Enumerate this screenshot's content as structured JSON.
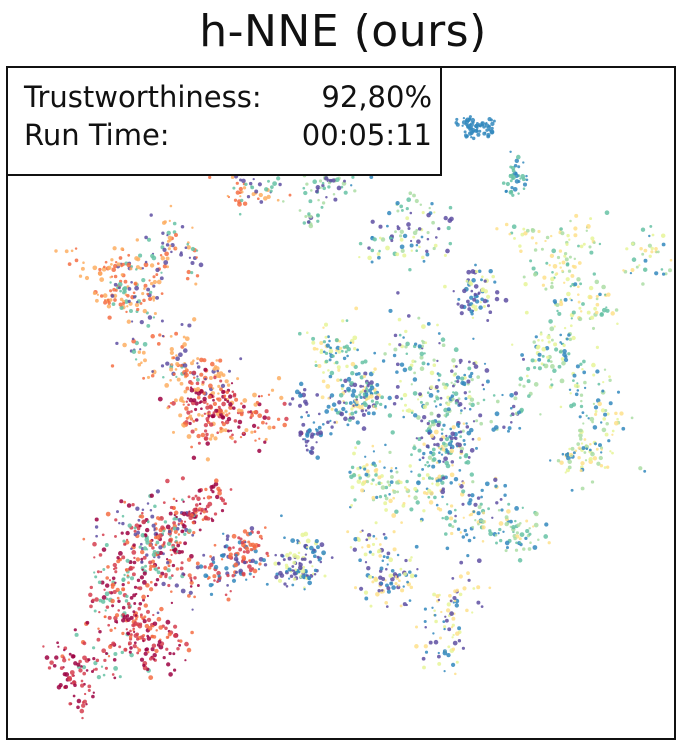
{
  "chart_data": {
    "type": "scatter",
    "title": "h-NNE (ours)",
    "xlabel": "",
    "ylabel": "",
    "grid": false,
    "legend": "none",
    "stats": [
      {
        "label": "Trustworthiness:",
        "value": "92,80%"
      },
      {
        "label": "Run Time:",
        "value": "00:05:11"
      }
    ],
    "colormap": [
      "#9e0142",
      "#d53e4f",
      "#f46d43",
      "#fdae61",
      "#fee08b",
      "#e6f598",
      "#abdda4",
      "#66c2a5",
      "#3288bd",
      "#5e4fa2"
    ],
    "xlim": [
      0,
      100
    ],
    "ylim": [
      0,
      100
    ],
    "clusters": [
      {
        "x": 71,
        "y": 91,
        "spread": 1.6,
        "n": 70,
        "palette": [
          8
        ]
      },
      {
        "x": 75,
        "y": 84,
        "spread": 1.8,
        "n": 40,
        "palette": [
          8,
          7
        ]
      },
      {
        "x": 48,
        "y": 80,
        "spread": 2.2,
        "n": 60,
        "palette": [
          6,
          7,
          9
        ]
      },
      {
        "x": 35,
        "y": 80,
        "spread": 2.4,
        "n": 70,
        "palette": [
          2,
          3,
          9,
          7
        ]
      },
      {
        "x": 24,
        "y": 76,
        "spread": 2.8,
        "n": 90,
        "palette": [
          3,
          2,
          9,
          7
        ]
      },
      {
        "x": 14,
        "y": 70,
        "spread": 2.2,
        "n": 60,
        "palette": [
          3,
          2
        ]
      },
      {
        "x": 21,
        "y": 63,
        "spread": 3.0,
        "n": 110,
        "palette": [
          3,
          2,
          9,
          7
        ]
      },
      {
        "x": 28,
        "y": 57,
        "spread": 2.6,
        "n": 80,
        "palette": [
          3,
          2,
          9
        ]
      },
      {
        "x": 58,
        "y": 77,
        "spread": 4.0,
        "n": 110,
        "palette": [
          7,
          6,
          8,
          9,
          5
        ]
      },
      {
        "x": 71,
        "y": 68,
        "spread": 2.8,
        "n": 70,
        "palette": [
          9,
          8,
          5
        ]
      },
      {
        "x": 82,
        "y": 70,
        "spread": 3.5,
        "n": 100,
        "palette": [
          6,
          5,
          7,
          4
        ]
      },
      {
        "x": 90,
        "y": 66,
        "spread": 3.5,
        "n": 90,
        "palette": [
          5,
          6,
          7,
          4,
          8
        ]
      },
      {
        "x": 33,
        "y": 49,
        "spread": 4.0,
        "n": 220,
        "palette": [
          0,
          1,
          2,
          3
        ]
      },
      {
        "x": 44,
        "y": 48,
        "spread": 2.0,
        "n": 50,
        "palette": [
          9,
          8
        ]
      },
      {
        "x": 53,
        "y": 50,
        "spread": 3.0,
        "n": 130,
        "palette": [
          9,
          8,
          7,
          4
        ]
      },
      {
        "x": 62,
        "y": 55,
        "spread": 4.5,
        "n": 150,
        "palette": [
          9,
          8,
          7,
          5,
          6
        ]
      },
      {
        "x": 48,
        "y": 58,
        "spread": 3.5,
        "n": 80,
        "palette": [
          4,
          5,
          7,
          8
        ]
      },
      {
        "x": 70,
        "y": 48,
        "spread": 3.5,
        "n": 110,
        "palette": [
          7,
          6,
          8,
          9
        ]
      },
      {
        "x": 80,
        "y": 55,
        "spread": 3.8,
        "n": 110,
        "palette": [
          6,
          5,
          7,
          8
        ]
      },
      {
        "x": 87,
        "y": 44,
        "spread": 3.6,
        "n": 100,
        "palette": [
          6,
          5,
          4,
          8
        ]
      },
      {
        "x": 67,
        "y": 39,
        "spread": 3.5,
        "n": 140,
        "palette": [
          9,
          8,
          7,
          4
        ]
      },
      {
        "x": 59,
        "y": 33,
        "spread": 3.6,
        "n": 110,
        "palette": [
          6,
          5,
          7,
          8,
          4
        ]
      },
      {
        "x": 73,
        "y": 29,
        "spread": 3.5,
        "n": 100,
        "palette": [
          6,
          7,
          8,
          4
        ]
      },
      {
        "x": 57,
        "y": 25,
        "spread": 3.5,
        "n": 110,
        "palette": [
          4,
          8,
          5,
          9
        ]
      },
      {
        "x": 67,
        "y": 19,
        "spread": 3.5,
        "n": 90,
        "palette": [
          5,
          4,
          8,
          9
        ]
      },
      {
        "x": 35,
        "y": 26,
        "spread": 3.5,
        "n": 130,
        "palette": [
          9,
          8,
          1,
          2
        ]
      },
      {
        "x": 44,
        "y": 28,
        "spread": 3.0,
        "n": 110,
        "palette": [
          9,
          8,
          5
        ]
      },
      {
        "x": 20,
        "y": 29,
        "spread": 5.0,
        "n": 260,
        "palette": [
          0,
          1,
          2,
          9,
          7
        ]
      },
      {
        "x": 13,
        "y": 20,
        "spread": 4.5,
        "n": 180,
        "palette": [
          1,
          0,
          2,
          7
        ]
      },
      {
        "x": 23,
        "y": 14,
        "spread": 3.2,
        "n": 110,
        "palette": [
          1,
          0,
          2
        ]
      },
      {
        "x": 11,
        "y": 9,
        "spread": 2.6,
        "n": 60,
        "palette": [
          0,
          1
        ]
      },
      {
        "x": 31,
        "y": 36,
        "spread": 2.6,
        "n": 60,
        "palette": [
          1,
          2,
          0
        ]
      }
    ]
  }
}
